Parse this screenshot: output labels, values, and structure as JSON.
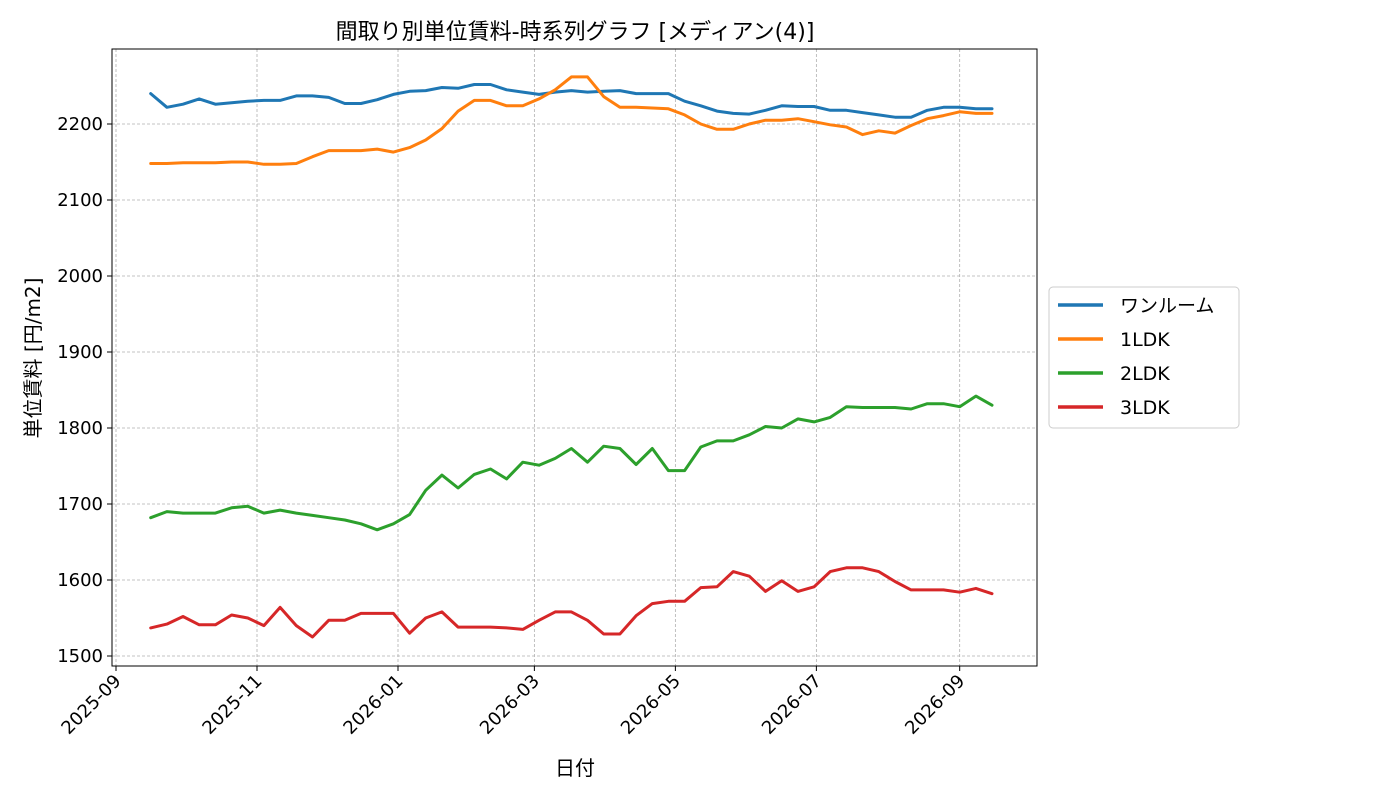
{
  "chart_data": {
    "type": "line",
    "title": "間取り別単位賃料-時系列グラフ [メディアン(4)]",
    "xlabel": "日付",
    "ylabel": "単位賃料 [円/m2]",
    "ylim": [
      1485,
      2300
    ],
    "xlim": [
      "2025-09-01",
      "2026-10-01"
    ],
    "yticks": [
      1500,
      1600,
      1700,
      1800,
      1900,
      2000,
      2100,
      2200
    ],
    "xticks": [
      "2025-09",
      "2025-11",
      "2026-01",
      "2026-03",
      "2026-05",
      "2026-07",
      "2026-09"
    ],
    "grid": true,
    "legend_position": "center-right outside",
    "x": [
      "2025-09-16",
      "2025-09-23",
      "2025-09-30",
      "2025-10-07",
      "2025-10-14",
      "2025-10-21",
      "2025-10-28",
      "2025-11-04",
      "2025-11-11",
      "2025-11-18",
      "2025-11-25",
      "2025-12-02",
      "2025-12-09",
      "2025-12-16",
      "2025-12-23",
      "2025-12-30",
      "2026-01-06",
      "2026-01-13",
      "2026-01-20",
      "2026-01-27",
      "2026-02-03",
      "2026-02-10",
      "2026-02-17",
      "2026-02-24",
      "2026-03-03",
      "2026-03-10",
      "2026-03-17",
      "2026-03-24",
      "2026-03-31",
      "2026-04-07",
      "2026-04-14",
      "2026-04-21",
      "2026-04-28",
      "2026-05-05",
      "2026-05-12",
      "2026-05-19",
      "2026-05-26",
      "2026-06-02",
      "2026-06-09",
      "2026-06-16",
      "2026-06-23",
      "2026-06-30",
      "2026-07-07",
      "2026-07-14",
      "2026-07-21",
      "2026-07-28",
      "2026-08-04",
      "2026-08-11",
      "2026-08-18",
      "2026-08-25",
      "2026-09-01",
      "2026-09-08",
      "2026-09-15"
    ],
    "series": [
      {
        "name": "ワンルーム",
        "color": "#1f77b4",
        "values": [
          2240,
          2222,
          2226,
          2233,
          2226,
          2228,
          2230,
          2231,
          2231,
          2237,
          2237,
          2235,
          2227,
          2227,
          2232,
          2239,
          2243,
          2244,
          2248,
          2247,
          2252,
          2252,
          2245,
          2242,
          2239,
          2242,
          2244,
          2242,
          2243,
          2244,
          2240,
          2240,
          2240,
          2230,
          2224,
          2217,
          2214,
          2213,
          2218,
          2224,
          2223,
          2223,
          2218,
          2218,
          2215,
          2212,
          2209,
          2209,
          2218,
          2222,
          2222,
          2220,
          2220
        ],
        "linewidth": 3
      },
      {
        "name": "1LDK",
        "color": "#ff7f0e",
        "values": [
          2148,
          2148,
          2149,
          2149,
          2149,
          2150,
          2150,
          2147,
          2147,
          2148,
          2157,
          2165,
          2165,
          2165,
          2167,
          2163,
          2169,
          2179,
          2194,
          2217,
          2231,
          2231,
          2224,
          2224,
          2233,
          2245,
          2262,
          2262,
          2236,
          2222,
          2222,
          2221,
          2220,
          2212,
          2200,
          2193,
          2193,
          2200,
          2205,
          2205,
          2207,
          2203,
          2199,
          2196,
          2186,
          2191,
          2188,
          2198,
          2207,
          2211,
          2216,
          2214,
          2214
        ],
        "linewidth": 3
      },
      {
        "name": "2LDK",
        "color": "#2ca02c",
        "values": [
          1682,
          1690,
          1688,
          1688,
          1688,
          1695,
          1697,
          1688,
          1692,
          1688,
          1685,
          1682,
          1679,
          1674,
          1666,
          1674,
          1686,
          1718,
          1738,
          1721,
          1739,
          1746,
          1733,
          1755,
          1751,
          1760,
          1773,
          1755,
          1776,
          1773,
          1752,
          1773,
          1744,
          1744,
          1775,
          1783,
          1783,
          1791,
          1802,
          1800,
          1812,
          1808,
          1814,
          1828,
          1827,
          1827,
          1827,
          1825,
          1832,
          1832,
          1828,
          1842,
          1830
        ],
        "linewidth": 3
      },
      {
        "name": "3LDK",
        "color": "#d62728",
        "values": [
          1537,
          1542,
          1552,
          1541,
          1541,
          1554,
          1550,
          1540,
          1564,
          1540,
          1525,
          1547,
          1547,
          1556,
          1556,
          1556,
          1530,
          1550,
          1558,
          1538,
          1538,
          1538,
          1537,
          1535,
          1547,
          1558,
          1558,
          1547,
          1529,
          1529,
          1553,
          1569,
          1572,
          1572,
          1590,
          1591,
          1611,
          1605,
          1585,
          1599,
          1585,
          1591,
          1611,
          1616,
          1616,
          1611,
          1598,
          1587,
          1587,
          1587,
          1584,
          1589,
          1582
        ],
        "linewidth": 3
      }
    ]
  }
}
